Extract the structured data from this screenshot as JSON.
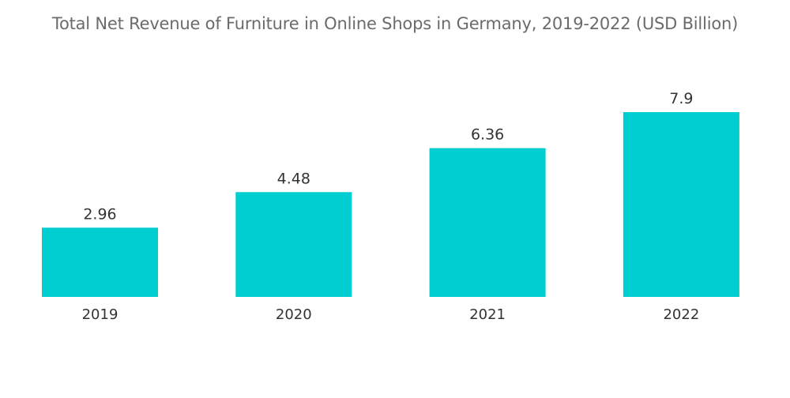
{
  "chart_data": {
    "type": "bar",
    "title": "Total Net Revenue of Furniture in Online Shops in Germany, 2019-2022 (USD Billion)",
    "categories": [
      "2019",
      "2020",
      "2021",
      "2022"
    ],
    "values": [
      2.96,
      4.48,
      6.36,
      7.9
    ],
    "value_labels": [
      "2.96",
      "4.48",
      "6.36",
      "7.9"
    ],
    "xlabel": "",
    "ylabel": "",
    "ylim": [
      0,
      7.9
    ],
    "grid": false,
    "bar_color": "#00CED1"
  }
}
